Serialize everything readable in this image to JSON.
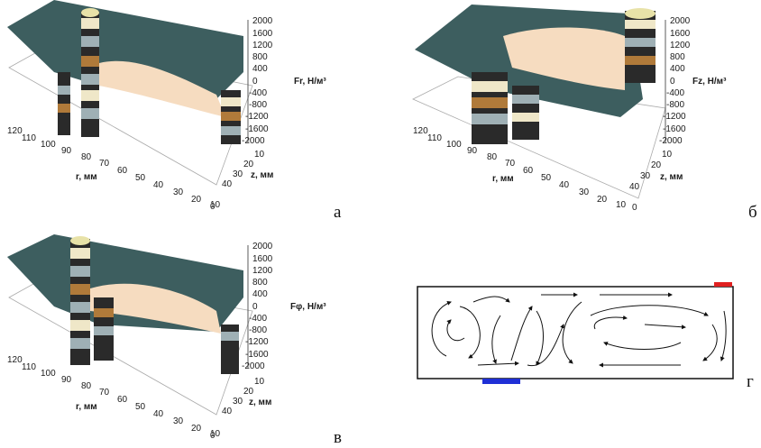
{
  "figure": {
    "panels": [
      {
        "letter": "а",
        "zlabel": "Fr, Н/м³"
      },
      {
        "letter": "б",
        "zlabel": "Fz, Н/м³"
      },
      {
        "letter": "в",
        "zlabel": "Fφ, Н/м³"
      },
      {
        "letter": "г"
      }
    ],
    "rlabel": "r, мм",
    "zaxis_label": "z, мм",
    "z_ticks": [
      "2000",
      "1600",
      "1200",
      "800",
      "400",
      "0",
      "-400",
      "-800",
      "-1200",
      "-1600",
      "-2000"
    ],
    "r_ticks": [
      "120",
      "110",
      "100",
      "90",
      "80",
      "70",
      "60",
      "50",
      "40",
      "30",
      "20",
      "10",
      "0"
    ],
    "depth_ticks": [
      "10",
      "20",
      "30",
      "40"
    ],
    "colors": {
      "surface_teal": "#3d5e5f",
      "surface_cream": "#f6dcc0",
      "band_dark": "#2a2a2a",
      "band_grey": "#9fb0b5",
      "band_bronze": "#b07a3a",
      "band_cream": "#efe7c8",
      "electrode_red": "#e02020",
      "electrode_blue": "#1f2fd6"
    }
  },
  "chart_data": [
    {
      "type": "surface",
      "panel": "а",
      "title": "",
      "xlabel": "r, мм",
      "ylabel": "z, мм",
      "zlabel": "Fr, Н/м³",
      "zlim": [
        -2000,
        2000
      ],
      "xlim": [
        0,
        120
      ],
      "ylim": [
        0,
        40
      ]
    },
    {
      "type": "surface",
      "panel": "б",
      "title": "",
      "xlabel": "r, мм",
      "ylabel": "z, мм",
      "zlabel": "Fz, Н/м³",
      "zlim": [
        -2000,
        2000
      ],
      "xlim": [
        0,
        120
      ],
      "ylim": [
        0,
        40
      ]
    },
    {
      "type": "surface",
      "panel": "в",
      "title": "",
      "xlabel": "r, мм",
      "ylabel": "z, мм",
      "zlabel": "Fφ, Н/м³",
      "zlim": [
        -2000,
        2000
      ],
      "xlim": [
        0,
        120
      ],
      "ylim": [
        0,
        40
      ]
    },
    {
      "type": "streamlines",
      "panel": "г",
      "title": "",
      "electrodes": [
        "top-right red",
        "bottom blue"
      ]
    }
  ]
}
